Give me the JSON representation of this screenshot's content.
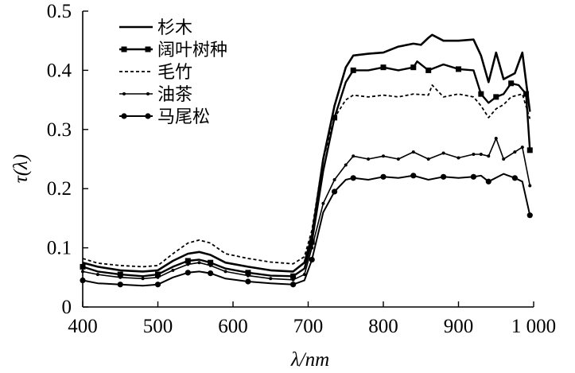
{
  "chart_data": {
    "type": "line",
    "title": "",
    "xlabel": "λ/nm",
    "ylabel": "τ(λ)",
    "xlim": [
      400,
      1000
    ],
    "ylim": [
      0,
      0.5
    ],
    "x_ticks": [
      400,
      500,
      600,
      700,
      800,
      900,
      1000
    ],
    "x_tick_labels": [
      "400",
      "500",
      "600",
      "700",
      "800",
      "900",
      "1 000"
    ],
    "y_ticks": [
      0,
      0.1,
      0.2,
      0.3,
      0.4,
      0.5
    ],
    "y_tick_labels": [
      "0",
      "0.1",
      "0.2",
      "0.3",
      "0.4",
      "0.5"
    ],
    "grid": false,
    "legend_position": "top-left",
    "series": [
      {
        "name": "杉木",
        "style": "solid-thick",
        "points": [
          [
            400,
            0.075
          ],
          [
            420,
            0.068
          ],
          [
            450,
            0.062
          ],
          [
            480,
            0.06
          ],
          [
            500,
            0.062
          ],
          [
            520,
            0.078
          ],
          [
            540,
            0.09
          ],
          [
            555,
            0.093
          ],
          [
            570,
            0.088
          ],
          [
            590,
            0.075
          ],
          [
            620,
            0.068
          ],
          [
            650,
            0.062
          ],
          [
            680,
            0.06
          ],
          [
            695,
            0.075
          ],
          [
            705,
            0.12
          ],
          [
            720,
            0.25
          ],
          [
            735,
            0.34
          ],
          [
            750,
            0.405
          ],
          [
            760,
            0.425
          ],
          [
            780,
            0.428
          ],
          [
            800,
            0.43
          ],
          [
            820,
            0.44
          ],
          [
            840,
            0.445
          ],
          [
            850,
            0.443
          ],
          [
            860,
            0.455
          ],
          [
            865,
            0.46
          ],
          [
            880,
            0.45
          ],
          [
            900,
            0.45
          ],
          [
            920,
            0.452
          ],
          [
            930,
            0.425
          ],
          [
            940,
            0.38
          ],
          [
            950,
            0.43
          ],
          [
            960,
            0.385
          ],
          [
            975,
            0.395
          ],
          [
            985,
            0.43
          ],
          [
            995,
            0.33
          ]
        ]
      },
      {
        "name": "阔叶树种",
        "style": "solid-square",
        "points": [
          [
            400,
            0.068
          ],
          [
            420,
            0.06
          ],
          [
            450,
            0.055
          ],
          [
            480,
            0.052
          ],
          [
            500,
            0.055
          ],
          [
            520,
            0.068
          ],
          [
            540,
            0.078
          ],
          [
            555,
            0.08
          ],
          [
            570,
            0.075
          ],
          [
            590,
            0.065
          ],
          [
            620,
            0.058
          ],
          [
            650,
            0.053
          ],
          [
            680,
            0.052
          ],
          [
            695,
            0.065
          ],
          [
            705,
            0.11
          ],
          [
            720,
            0.23
          ],
          [
            735,
            0.32
          ],
          [
            750,
            0.38
          ],
          [
            760,
            0.4
          ],
          [
            780,
            0.4
          ],
          [
            800,
            0.405
          ],
          [
            820,
            0.4
          ],
          [
            840,
            0.405
          ],
          [
            845,
            0.415
          ],
          [
            860,
            0.4
          ],
          [
            880,
            0.41
          ],
          [
            900,
            0.402
          ],
          [
            920,
            0.4
          ],
          [
            930,
            0.36
          ],
          [
            940,
            0.345
          ],
          [
            950,
            0.355
          ],
          [
            960,
            0.36
          ],
          [
            970,
            0.378
          ],
          [
            980,
            0.375
          ],
          [
            990,
            0.36
          ],
          [
            995,
            0.265
          ]
        ]
      },
      {
        "name": "毛竹",
        "style": "dashed",
        "points": [
          [
            400,
            0.082
          ],
          [
            420,
            0.074
          ],
          [
            450,
            0.07
          ],
          [
            480,
            0.068
          ],
          [
            500,
            0.07
          ],
          [
            520,
            0.09
          ],
          [
            540,
            0.108
          ],
          [
            555,
            0.113
          ],
          [
            570,
            0.108
          ],
          [
            590,
            0.09
          ],
          [
            620,
            0.082
          ],
          [
            650,
            0.076
          ],
          [
            680,
            0.073
          ],
          [
            695,
            0.085
          ],
          [
            705,
            0.13
          ],
          [
            720,
            0.25
          ],
          [
            735,
            0.32
          ],
          [
            750,
            0.35
          ],
          [
            760,
            0.358
          ],
          [
            780,
            0.355
          ],
          [
            800,
            0.358
          ],
          [
            820,
            0.355
          ],
          [
            840,
            0.36
          ],
          [
            860,
            0.358
          ],
          [
            865,
            0.375
          ],
          [
            880,
            0.355
          ],
          [
            900,
            0.36
          ],
          [
            920,
            0.355
          ],
          [
            930,
            0.34
          ],
          [
            940,
            0.32
          ],
          [
            950,
            0.335
          ],
          [
            960,
            0.342
          ],
          [
            970,
            0.355
          ],
          [
            985,
            0.36
          ],
          [
            995,
            0.318
          ]
        ]
      },
      {
        "name": "油茶",
        "style": "solid-thin",
        "points": [
          [
            400,
            0.06
          ],
          [
            420,
            0.055
          ],
          [
            450,
            0.05
          ],
          [
            480,
            0.048
          ],
          [
            500,
            0.05
          ],
          [
            520,
            0.062
          ],
          [
            540,
            0.072
          ],
          [
            555,
            0.075
          ],
          [
            570,
            0.07
          ],
          [
            590,
            0.06
          ],
          [
            620,
            0.053
          ],
          [
            650,
            0.048
          ],
          [
            680,
            0.046
          ],
          [
            695,
            0.055
          ],
          [
            705,
            0.1
          ],
          [
            720,
            0.175
          ],
          [
            735,
            0.215
          ],
          [
            750,
            0.24
          ],
          [
            760,
            0.255
          ],
          [
            780,
            0.25
          ],
          [
            800,
            0.255
          ],
          [
            820,
            0.25
          ],
          [
            840,
            0.262
          ],
          [
            860,
            0.25
          ],
          [
            880,
            0.26
          ],
          [
            900,
            0.252
          ],
          [
            920,
            0.258
          ],
          [
            930,
            0.258
          ],
          [
            940,
            0.255
          ],
          [
            950,
            0.285
          ],
          [
            960,
            0.25
          ],
          [
            975,
            0.262
          ],
          [
            985,
            0.27
          ],
          [
            995,
            0.205
          ]
        ]
      },
      {
        "name": "马尾松",
        "style": "solid-dot",
        "points": [
          [
            400,
            0.045
          ],
          [
            420,
            0.04
          ],
          [
            450,
            0.038
          ],
          [
            480,
            0.036
          ],
          [
            500,
            0.038
          ],
          [
            520,
            0.05
          ],
          [
            540,
            0.058
          ],
          [
            555,
            0.06
          ],
          [
            570,
            0.057
          ],
          [
            590,
            0.048
          ],
          [
            620,
            0.043
          ],
          [
            650,
            0.04
          ],
          [
            680,
            0.038
          ],
          [
            695,
            0.045
          ],
          [
            705,
            0.08
          ],
          [
            720,
            0.16
          ],
          [
            735,
            0.195
          ],
          [
            750,
            0.215
          ],
          [
            760,
            0.218
          ],
          [
            780,
            0.215
          ],
          [
            800,
            0.22
          ],
          [
            820,
            0.218
          ],
          [
            840,
            0.222
          ],
          [
            860,
            0.215
          ],
          [
            880,
            0.22
          ],
          [
            900,
            0.218
          ],
          [
            920,
            0.22
          ],
          [
            930,
            0.222
          ],
          [
            940,
            0.212
          ],
          [
            960,
            0.225
          ],
          [
            975,
            0.218
          ],
          [
            985,
            0.212
          ],
          [
            995,
            0.155
          ]
        ]
      }
    ]
  }
}
